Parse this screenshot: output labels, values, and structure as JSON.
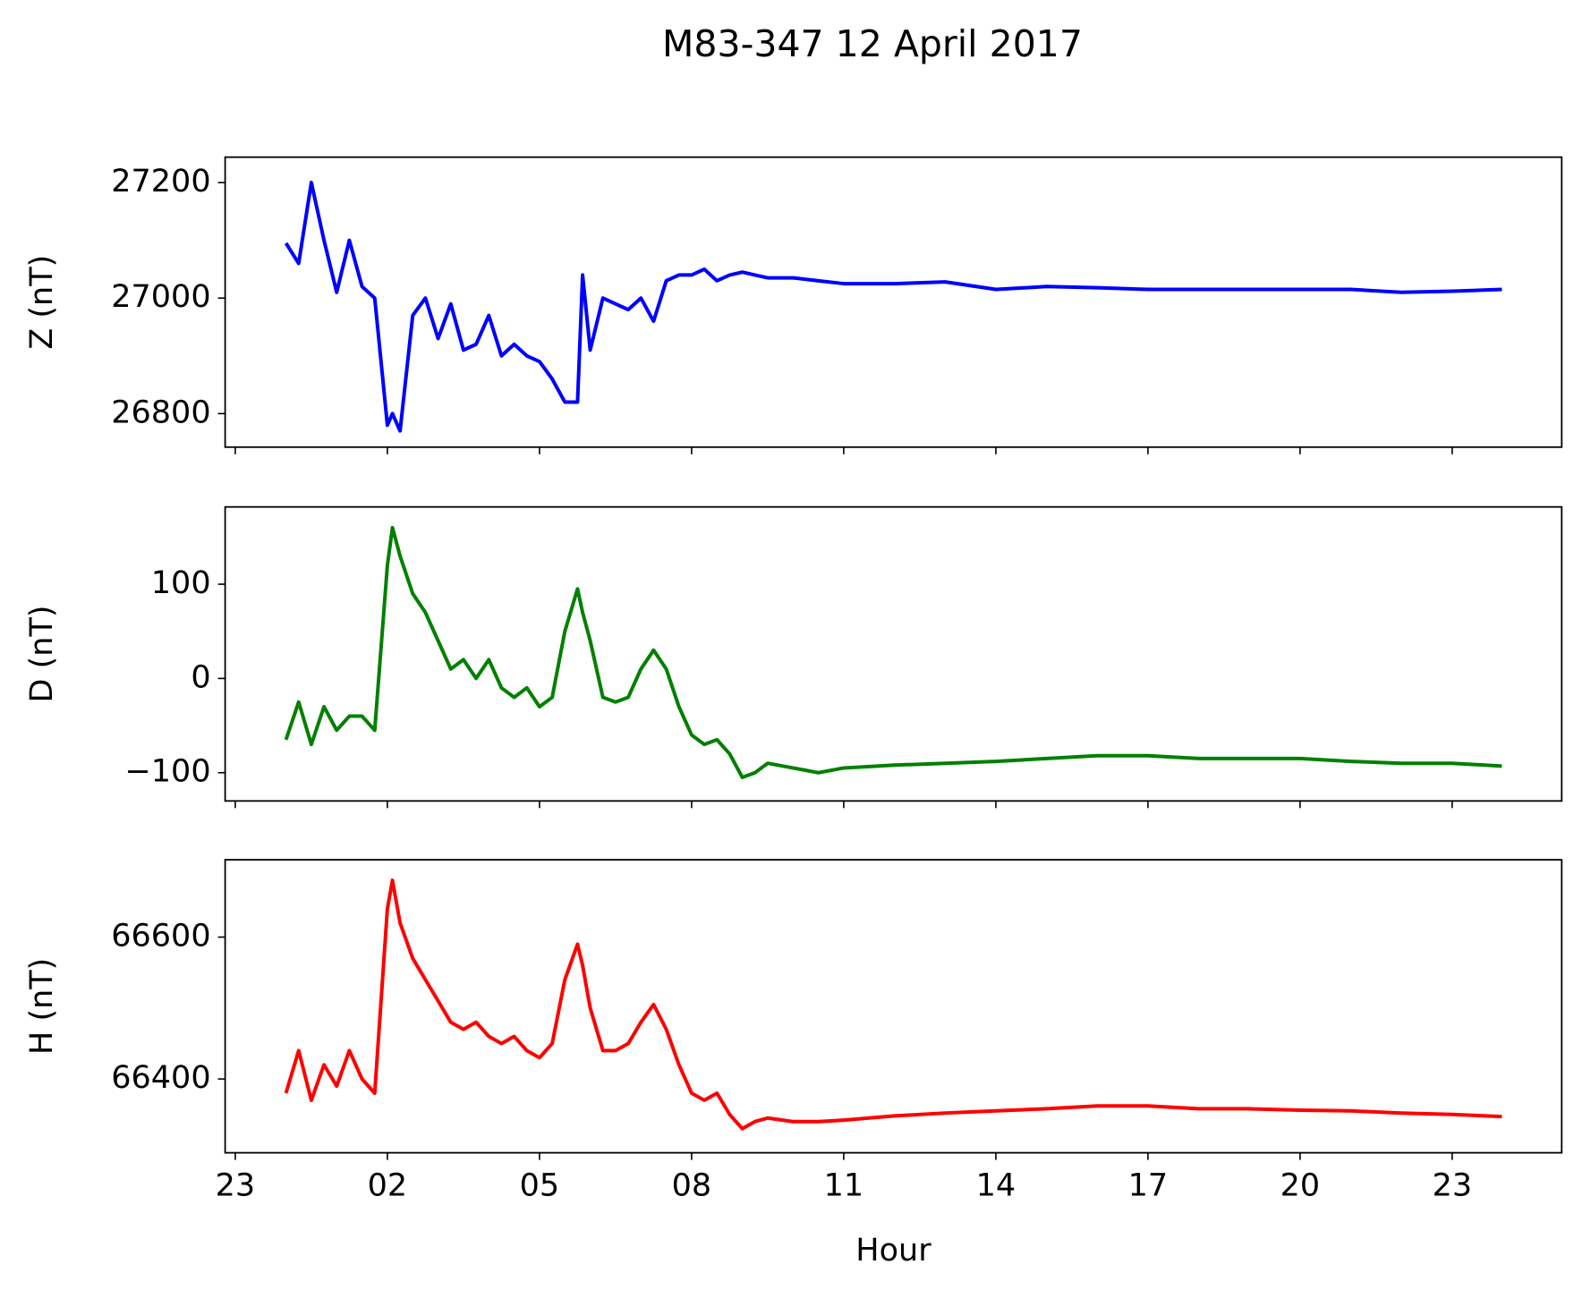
{
  "chart_data": [
    {
      "type": "line",
      "title": "M83-347 12 April 2017",
      "ylabel": "Z (nT)",
      "x": [
        0,
        0.25,
        0.5,
        0.75,
        1,
        1.25,
        1.5,
        1.75,
        2,
        2.1,
        2.25,
        2.5,
        2.75,
        3,
        3.25,
        3.5,
        3.75,
        4,
        4.25,
        4.5,
        4.75,
        5,
        5.25,
        5.5,
        5.75,
        5.85,
        6,
        6.25,
        6.5,
        6.75,
        7,
        7.25,
        7.5,
        7.75,
        8,
        8.25,
        8.5,
        8.75,
        9,
        9.25,
        9.5,
        10,
        10.5,
        11,
        12,
        13,
        14,
        15,
        16,
        17,
        18,
        19,
        20,
        21,
        22,
        23,
        23.98
      ],
      "series": [
        {
          "name": "Z",
          "color": "#0000ff",
          "values": [
            27095,
            27060,
            27200,
            27100,
            27010,
            27100,
            27020,
            27000,
            26780,
            26800,
            26770,
            26970,
            27000,
            26930,
            26990,
            26910,
            26920,
            26970,
            26900,
            26920,
            26900,
            26890,
            26860,
            26820,
            26820,
            27040,
            26910,
            27000,
            26990,
            26980,
            27000,
            26960,
            27030,
            27040,
            27040,
            27050,
            27030,
            27040,
            27045,
            27040,
            27035,
            27035,
            27030,
            27025,
            27025,
            27028,
            27015,
            27020,
            27018,
            27015,
            27015,
            27015,
            27015,
            27015,
            27010,
            27012,
            27015
          ]
        }
      ],
      "xlim": [
        -1.2,
        25.16
      ],
      "xticks": [
        {
          "value": -1,
          "label": "23"
        },
        {
          "value": 2,
          "label": "02"
        },
        {
          "value": 5,
          "label": "05"
        },
        {
          "value": 8,
          "label": "08"
        },
        11,
        14,
        17,
        20,
        23
      ],
      "ylim": [
        26742,
        27244
      ],
      "yticks": [
        26800,
        27000,
        27200
      ]
    },
    {
      "type": "line",
      "ylabel": "D (nT)",
      "x": [
        0,
        0.25,
        0.5,
        0.75,
        1,
        1.25,
        1.5,
        1.75,
        2,
        2.1,
        2.25,
        2.5,
        2.75,
        3,
        3.25,
        3.5,
        3.75,
        4,
        4.25,
        4.5,
        4.75,
        5,
        5.25,
        5.5,
        5.75,
        5.85,
        6,
        6.25,
        6.5,
        6.75,
        7,
        7.25,
        7.5,
        7.75,
        8,
        8.25,
        8.5,
        8.75,
        9,
        9.25,
        9.5,
        10,
        10.5,
        11,
        12,
        13,
        14,
        15,
        16,
        17,
        18,
        19,
        20,
        21,
        22,
        23,
        23.98
      ],
      "series": [
        {
          "name": "D",
          "color": "#008000",
          "values": [
            -65,
            -25,
            -70,
            -30,
            -55,
            -40,
            -40,
            -55,
            120,
            160,
            130,
            90,
            70,
            40,
            10,
            20,
            0,
            20,
            -10,
            -20,
            -10,
            -30,
            -20,
            50,
            95,
            70,
            40,
            -20,
            -25,
            -20,
            10,
            30,
            10,
            -30,
            -60,
            -70,
            -65,
            -80,
            -105,
            -100,
            -90,
            -95,
            -100,
            -95,
            -92,
            -90,
            -88,
            -85,
            -82,
            -82,
            -85,
            -85,
            -85,
            -88,
            -90,
            -90,
            -93
          ]
        }
      ],
      "xlim": [
        -1.2,
        25.16
      ],
      "xticks": [
        {
          "value": -1,
          "label": "23"
        },
        {
          "value": 2,
          "label": "02"
        },
        {
          "value": 5,
          "label": "05"
        },
        {
          "value": 8,
          "label": "08"
        },
        11,
        14,
        17,
        20,
        23
      ],
      "ylim": [
        -130,
        182
      ],
      "yticks": [
        {
          "value": -100,
          "label": "−100"
        },
        0,
        100
      ]
    },
    {
      "type": "line",
      "ylabel": "H (nT)",
      "xlabel": "Hour",
      "x": [
        0,
        0.25,
        0.5,
        0.75,
        1,
        1.25,
        1.5,
        1.75,
        2,
        2.1,
        2.25,
        2.5,
        2.75,
        3,
        3.25,
        3.5,
        3.75,
        4,
        4.25,
        4.5,
        4.75,
        5,
        5.25,
        5.5,
        5.75,
        5.85,
        6,
        6.25,
        6.5,
        6.75,
        7,
        7.25,
        7.5,
        7.75,
        8,
        8.25,
        8.5,
        8.75,
        9,
        9.25,
        9.5,
        10,
        10.5,
        11,
        12,
        13,
        14,
        15,
        16,
        17,
        18,
        19,
        20,
        21,
        22,
        23,
        23.98
      ],
      "series": [
        {
          "name": "H",
          "color": "#ff0000",
          "values": [
            66380,
            66440,
            66370,
            66420,
            66390,
            66440,
            66400,
            66380,
            66640,
            66680,
            66620,
            66570,
            66540,
            66510,
            66480,
            66470,
            66480,
            66460,
            66450,
            66460,
            66440,
            66430,
            66450,
            66540,
            66590,
            66560,
            66500,
            66440,
            66440,
            66450,
            66480,
            66505,
            66470,
            66420,
            66380,
            66370,
            66380,
            66350,
            66330,
            66340,
            66345,
            66340,
            66340,
            66342,
            66348,
            66352,
            66355,
            66358,
            66362,
            66362,
            66358,
            66358,
            66356,
            66355,
            66352,
            66350,
            66347
          ]
        }
      ],
      "xlim": [
        -1.2,
        25.16
      ],
      "xticks": [
        {
          "value": -1,
          "label": "23"
        },
        {
          "value": 2,
          "label": "02"
        },
        {
          "value": 5,
          "label": "05"
        },
        {
          "value": 8,
          "label": "08"
        },
        11,
        14,
        17,
        20,
        23
      ],
      "ylim": [
        66296,
        66709
      ],
      "yticks": [
        66400,
        66600
      ]
    }
  ]
}
